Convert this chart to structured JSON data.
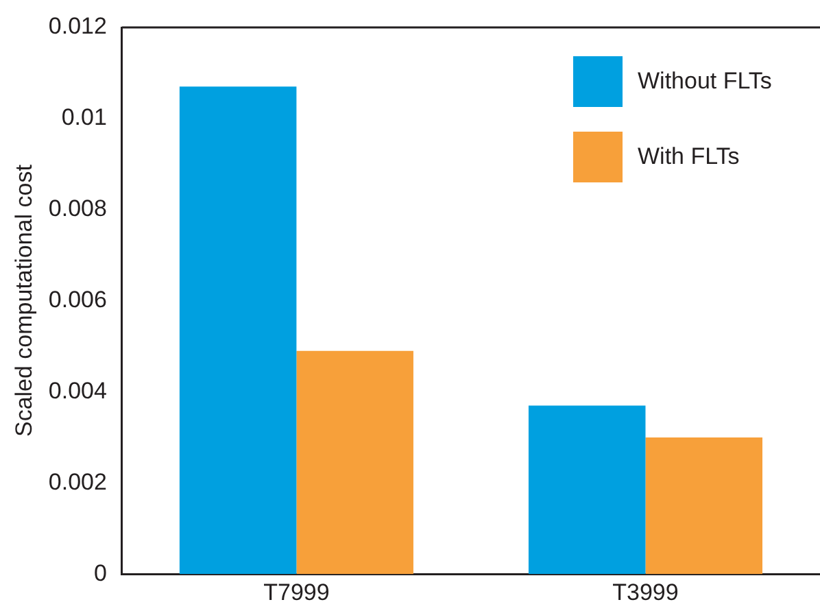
{
  "chart_data": {
    "type": "bar",
    "ylabel": "Scaled computational cost",
    "categories": [
      "T7999",
      "T3999"
    ],
    "series": [
      {
        "name": "Without FLTs",
        "color": "#00a0e0",
        "values": [
          0.0107,
          0.0037
        ]
      },
      {
        "name": "With FLTs",
        "color": "#f7a03a",
        "values": [
          0.0049,
          0.003
        ]
      }
    ],
    "ylim": [
      0,
      0.012
    ],
    "yticks": [
      0,
      0.002,
      0.004,
      0.006,
      0.008,
      0.01,
      0.012
    ],
    "grid": false,
    "legend": "top right"
  }
}
